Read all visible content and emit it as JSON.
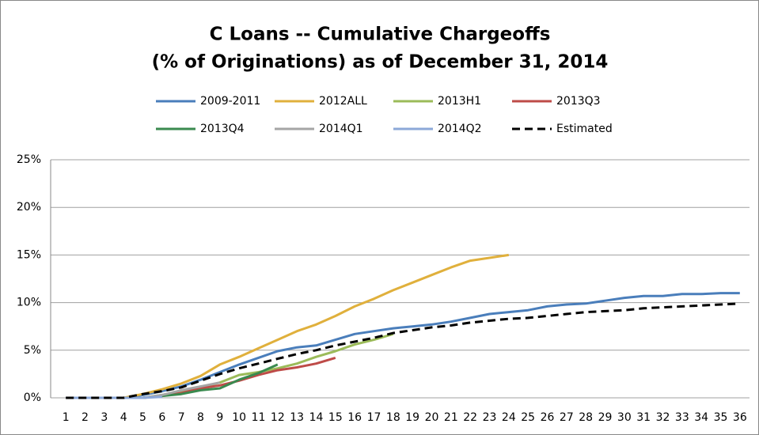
{
  "chart_data": {
    "type": "line",
    "title": [
      "C Loans -- Cumulative Chargeoffs",
      "(% of Originations) as of December 31, 2014"
    ],
    "categories": [
      "1",
      "2",
      "3",
      "4",
      "5",
      "6",
      "7",
      "8",
      "9",
      "10",
      "11",
      "12",
      "13",
      "14",
      "15",
      "16",
      "17",
      "18",
      "19",
      "20",
      "21",
      "22",
      "23",
      "24",
      "25",
      "26",
      "27",
      "28",
      "29",
      "30",
      "31",
      "32",
      "33",
      "34",
      "35",
      "36"
    ],
    "ylim": [
      0,
      25
    ],
    "yticks": [
      {
        "value": 0,
        "label": "0%"
      },
      {
        "value": 5,
        "label": "5%"
      },
      {
        "value": 10,
        "label": "10%"
      },
      {
        "value": 15,
        "label": "15%"
      },
      {
        "value": 20,
        "label": "20%"
      },
      {
        "value": 25,
        "label": "25%"
      }
    ],
    "grid": true,
    "legend": "top",
    "series": [
      {
        "name": "2009-2011",
        "color": "#4a7ebb",
        "values": [
          0,
          0,
          0,
          0,
          0.3,
          0.7,
          1.2,
          1.9,
          2.7,
          3.5,
          4.2,
          4.9,
          5.3,
          5.5,
          6.1,
          6.7,
          7.0,
          7.3,
          7.5,
          7.7,
          8.0,
          8.4,
          8.8,
          9.0,
          9.2,
          9.6,
          9.8,
          9.9,
          10.2,
          10.5,
          10.7,
          10.7,
          10.9,
          10.9,
          11.0,
          11.0
        ]
      },
      {
        "name": "2012ALL",
        "color": "#e0b03c",
        "values": [
          0,
          0,
          0,
          0,
          0.4,
          0.9,
          1.5,
          2.3,
          3.5,
          4.3,
          5.2,
          6.1,
          7.0,
          7.7,
          8.6,
          9.6,
          10.4,
          11.3,
          12.1,
          12.9,
          13.7,
          14.4,
          14.7,
          15.0,
          null,
          null,
          null,
          null,
          null,
          null,
          null,
          null,
          null,
          null,
          null,
          null
        ]
      },
      {
        "name": "2013H1",
        "color": "#9bbb59",
        "values": [
          0,
          0,
          0,
          0,
          0,
          0.3,
          0.7,
          1.1,
          1.6,
          2.4,
          2.7,
          3.1,
          3.6,
          4.3,
          4.9,
          5.6,
          6.1,
          6.7,
          null,
          null,
          null,
          null,
          null,
          null,
          null,
          null,
          null,
          null,
          null,
          null,
          null,
          null,
          null,
          null,
          null,
          null
        ]
      },
      {
        "name": "2013Q3",
        "color": "#be4b48",
        "values": [
          0,
          0,
          0,
          0,
          0,
          0.2,
          0.5,
          1.0,
          1.3,
          1.8,
          2.4,
          2.9,
          3.2,
          3.6,
          4.2,
          null,
          null,
          null,
          null,
          null,
          null,
          null,
          null,
          null,
          null,
          null,
          null,
          null,
          null,
          null,
          null,
          null,
          null,
          null,
          null,
          null
        ]
      },
      {
        "name": "2013Q4",
        "color": "#3a8a4f",
        "values": [
          0,
          0,
          0,
          0,
          0,
          0.2,
          0.4,
          0.8,
          1.0,
          1.9,
          2.6,
          3.5,
          null,
          null,
          null,
          null,
          null,
          null,
          null,
          null,
          null,
          null,
          null,
          null,
          null,
          null,
          null,
          null,
          null,
          null,
          null,
          null,
          null,
          null,
          null,
          null
        ]
      },
      {
        "name": "2014Q1",
        "color": "#a5a5a5",
        "values": [
          0,
          0,
          0,
          0,
          0,
          0.3,
          0.8,
          1.2,
          1.6,
          null,
          null,
          null,
          null,
          null,
          null,
          null,
          null,
          null,
          null,
          null,
          null,
          null,
          null,
          null,
          null,
          null,
          null,
          null,
          null,
          null,
          null,
          null,
          null,
          null,
          null,
          null
        ]
      },
      {
        "name": "2014Q2",
        "color": "#8ca8d8",
        "values": [
          0,
          0,
          0,
          0,
          0,
          0.1,
          null,
          null,
          null,
          null,
          null,
          null,
          null,
          null,
          null,
          null,
          null,
          null,
          null,
          null,
          null,
          null,
          null,
          null,
          null,
          null,
          null,
          null,
          null,
          null,
          null,
          null,
          null,
          null,
          null,
          null
        ]
      },
      {
        "name": "Estimated",
        "color": "#000000",
        "dashed": true,
        "values": [
          0,
          0,
          0,
          0,
          0.4,
          0.7,
          1.1,
          1.8,
          2.5,
          3.1,
          3.6,
          4.1,
          4.6,
          5.0,
          5.5,
          5.9,
          6.3,
          6.8,
          7.1,
          7.4,
          7.6,
          7.9,
          8.1,
          8.3,
          8.4,
          8.6,
          8.8,
          9.0,
          9.1,
          9.2,
          9.4,
          9.5,
          9.6,
          9.7,
          9.8,
          9.9
        ]
      }
    ]
  }
}
